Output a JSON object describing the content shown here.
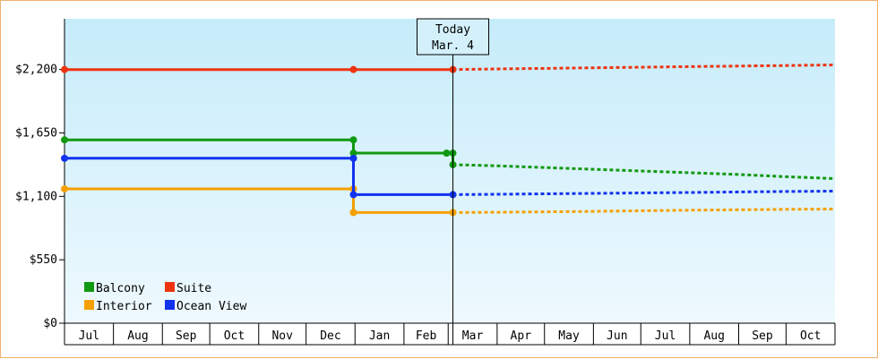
{
  "chart_data": {
    "type": "line",
    "x_type": "month",
    "month_labels": [
      "Jul",
      "Aug",
      "Sep",
      "Oct",
      "Nov",
      "Dec",
      "Jan",
      "Feb",
      "Mar",
      "Apr",
      "May",
      "Jun",
      "Jul",
      "Aug",
      "Sep",
      "Oct"
    ],
    "xlim": [
      "2014-07-01",
      "2015-10-31"
    ],
    "ylim": [
      0,
      2640
    ],
    "y_ticks": [
      {
        "value": 0,
        "label": "$0"
      },
      {
        "value": 550,
        "label": "$550"
      },
      {
        "value": 1100,
        "label": "$1,100"
      },
      {
        "value": 1650,
        "label": "$1,650"
      },
      {
        "value": 2200,
        "label": "$2,200"
      }
    ],
    "today": {
      "date": "2015-03-04",
      "label_line1": "Today",
      "label_line2": "Mar. 4"
    },
    "legend": {
      "position": "bottom-left"
    },
    "series": [
      {
        "name": "Balcony",
        "color": "#119911",
        "history": [
          [
            "2014-07-01",
            1590
          ],
          [
            "2014-12-31",
            1590
          ],
          [
            "2014-12-31",
            1475
          ],
          [
            "2015-02-28",
            1475
          ],
          [
            "2015-03-04",
            1475
          ],
          [
            "2015-03-04",
            1375
          ]
        ],
        "forecast": [
          [
            "2015-03-04",
            1375
          ],
          [
            "2015-04-01",
            1365
          ],
          [
            "2015-05-01",
            1350
          ],
          [
            "2015-06-01",
            1335
          ],
          [
            "2015-07-01",
            1320
          ],
          [
            "2015-08-01",
            1305
          ],
          [
            "2015-09-01",
            1290
          ],
          [
            "2015-10-01",
            1270
          ],
          [
            "2015-10-31",
            1255
          ]
        ]
      },
      {
        "name": "Suite",
        "color": "#ee3311",
        "history": [
          [
            "2014-07-01",
            2200
          ],
          [
            "2014-12-31",
            2200
          ],
          [
            "2015-03-04",
            2200
          ]
        ],
        "forecast": [
          [
            "2015-03-04",
            2200
          ],
          [
            "2015-04-01",
            2205
          ],
          [
            "2015-05-01",
            2210
          ],
          [
            "2015-06-01",
            2215
          ],
          [
            "2015-07-01",
            2220
          ],
          [
            "2015-08-01",
            2225
          ],
          [
            "2015-09-01",
            2230
          ],
          [
            "2015-10-01",
            2235
          ],
          [
            "2015-10-31",
            2240
          ]
        ]
      },
      {
        "name": "Interior",
        "color": "#f5a000",
        "history": [
          [
            "2014-07-01",
            1165
          ],
          [
            "2014-12-31",
            1165
          ],
          [
            "2014-12-31",
            960
          ],
          [
            "2015-03-04",
            960
          ]
        ],
        "forecast": [
          [
            "2015-03-04",
            960
          ],
          [
            "2015-04-01",
            962
          ],
          [
            "2015-05-01",
            966
          ],
          [
            "2015-06-01",
            970
          ],
          [
            "2015-07-01",
            975
          ],
          [
            "2015-08-01",
            980
          ],
          [
            "2015-09-01",
            984
          ],
          [
            "2015-10-01",
            988
          ],
          [
            "2015-10-31",
            990
          ]
        ]
      },
      {
        "name": "Ocean View",
        "color": "#1133ee",
        "history": [
          [
            "2014-07-01",
            1430
          ],
          [
            "2014-12-31",
            1430
          ],
          [
            "2014-12-31",
            1115
          ],
          [
            "2015-03-04",
            1115
          ]
        ],
        "forecast": [
          [
            "2015-03-04",
            1115
          ],
          [
            "2015-04-01",
            1118
          ],
          [
            "2015-05-01",
            1122
          ],
          [
            "2015-06-01",
            1126
          ],
          [
            "2015-07-01",
            1130
          ],
          [
            "2015-08-01",
            1134
          ],
          [
            "2015-09-01",
            1138
          ],
          [
            "2015-10-01",
            1142
          ],
          [
            "2015-10-31",
            1145
          ]
        ]
      }
    ]
  }
}
